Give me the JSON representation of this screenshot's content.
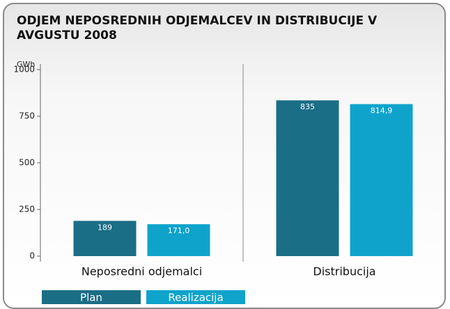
{
  "chart_data": {
    "type": "bar",
    "title": "ODJEM NEPOSREDNIH ODJEMALCEV IN DISTRIBUCIJE V AVGUSTU 2008",
    "y_label": "GWh",
    "categories": [
      "Neposredni odjemalci",
      "Distribucija"
    ],
    "series": [
      {
        "name": "Plan",
        "color": "#1a6e86",
        "values": [
          189,
          835
        ]
      },
      {
        "name": "Realizacija",
        "color": "#0fa3cc",
        "values": [
          171.0,
          814.9
        ],
        "value_labels": [
          "171,0",
          "814,9"
        ]
      }
    ],
    "ylim": [
      0,
      1000
    ],
    "yticks": [
      0,
      250,
      500,
      750,
      1000
    ]
  }
}
